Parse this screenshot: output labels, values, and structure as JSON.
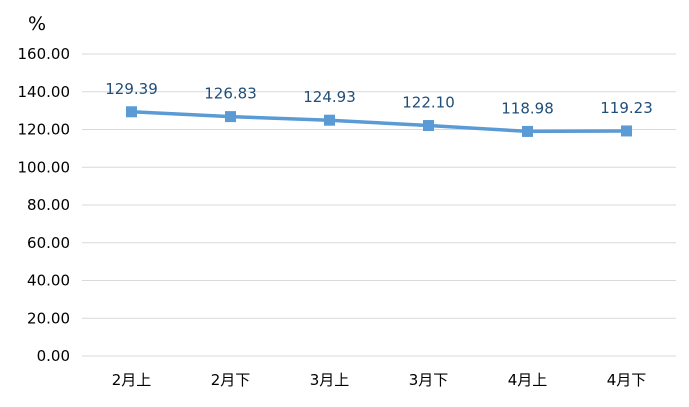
{
  "chart_data": {
    "type": "line",
    "title": "",
    "xlabel": "",
    "ylabel": "%",
    "ylim": [
      0,
      160
    ],
    "yticks": [
      "0.00",
      "20.00",
      "40.00",
      "60.00",
      "80.00",
      "100.00",
      "120.00",
      "140.00",
      "160.00"
    ],
    "categories": [
      "2月上",
      "2月下",
      "3月上",
      "3月下",
      "4月上",
      "4月下"
    ],
    "series": [
      {
        "values": [
          129.39,
          126.83,
          124.93,
          122.1,
          118.98,
          119.23
        ],
        "labels": [
          "129.39",
          "126.83",
          "124.93",
          "122.10",
          "118.98",
          "119.23"
        ],
        "color": "#5b9bd5",
        "marker": "square"
      }
    ],
    "grid": true,
    "legend": "none"
  }
}
